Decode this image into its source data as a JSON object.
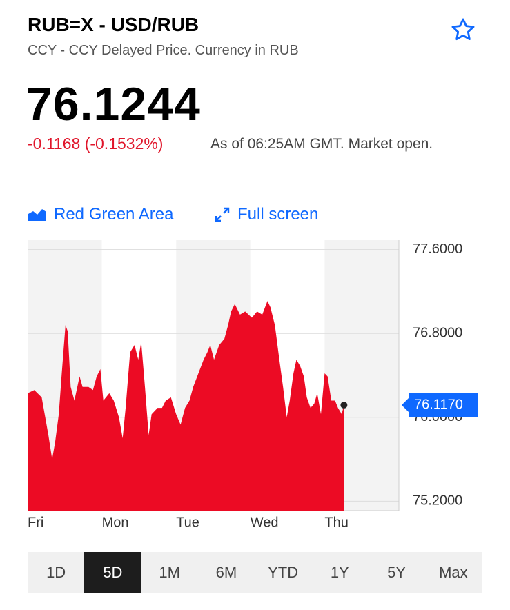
{
  "header": {
    "title": "RUB=X - USD/RUB",
    "subtitle": "CCY - CCY Delayed Price. Currency in RUB"
  },
  "quote": {
    "price": "76.1244",
    "change": "-0.1168 (-0.1532%)",
    "as_of": "As of 06:25AM GMT. Market open."
  },
  "controls": {
    "chart_type": "Red Green Area",
    "full_screen": "Full screen"
  },
  "chart_data": {
    "type": "area",
    "color": "#ec0b24",
    "x": [
      0,
      0.09,
      0.19,
      0.23,
      0.28,
      0.33,
      0.37,
      0.42,
      0.46,
      0.51,
      0.54,
      0.58,
      0.63,
      0.7,
      0.74,
      0.82,
      0.88,
      0.93,
      0.98,
      1.02,
      1.1,
      1.16,
      1.23,
      1.28,
      1.32,
      1.38,
      1.44,
      1.49,
      1.53,
      1.58,
      1.63,
      1.67,
      1.75,
      1.81,
      1.86,
      1.93,
      2.0,
      2.06,
      2.12,
      2.18,
      2.23,
      2.3,
      2.37,
      2.42,
      2.46,
      2.51,
      2.58,
      2.65,
      2.7,
      2.74,
      2.79,
      2.86,
      2.93,
      3.02,
      3.09,
      3.16,
      3.23,
      3.27,
      3.33,
      3.39,
      3.44,
      3.49,
      3.53,
      3.58,
      3.62,
      3.67,
      3.72,
      3.76,
      3.81,
      3.86,
      3.9,
      3.95,
      4.0,
      4.04,
      4.09,
      4.14,
      4.18,
      4.23,
      4.26
    ],
    "values": [
      76.23,
      76.26,
      76.19,
      76.03,
      75.83,
      75.6,
      75.76,
      76.03,
      76.42,
      76.88,
      76.82,
      76.29,
      76.16,
      76.39,
      76.29,
      76.29,
      76.26,
      76.39,
      76.46,
      76.16,
      76.23,
      76.16,
      76.0,
      75.8,
      76.09,
      76.62,
      76.69,
      76.55,
      76.72,
      76.29,
      75.83,
      76.03,
      76.09,
      76.09,
      76.16,
      76.19,
      76.03,
      75.93,
      76.09,
      76.16,
      76.29,
      76.42,
      76.55,
      76.62,
      76.69,
      76.55,
      76.69,
      76.75,
      76.88,
      77.01,
      77.08,
      76.98,
      77.01,
      76.95,
      77.01,
      76.98,
      77.11,
      77.05,
      76.88,
      76.55,
      76.29,
      76.0,
      76.16,
      76.42,
      76.55,
      76.49,
      76.39,
      76.19,
      76.09,
      76.13,
      76.23,
      76.03,
      76.42,
      76.39,
      76.16,
      76.16,
      76.09,
      76.03,
      76.117
    ],
    "xlim": [
      0,
      5
    ],
    "xticks": [
      {
        "value": 0,
        "label": "Fri"
      },
      {
        "value": 1,
        "label": "Mon"
      },
      {
        "value": 2,
        "label": "Tue"
      },
      {
        "value": 3,
        "label": "Wed"
      },
      {
        "value": 4,
        "label": "Thu"
      }
    ],
    "ylim": [
      75.11,
      77.69
    ],
    "yticks": [
      {
        "value": 77.6,
        "label": "77.6000"
      },
      {
        "value": 76.8,
        "label": "76.8000"
      },
      {
        "value": 76.0,
        "label": "76.0000"
      },
      {
        "value": 75.2,
        "label": "75.2000"
      }
    ],
    "grid": true,
    "last_price": {
      "value": 76.117,
      "label": "76.1170"
    }
  },
  "range_tabs": {
    "options": [
      "1D",
      "5D",
      "1M",
      "6M",
      "YTD",
      "1Y",
      "5Y",
      "Max"
    ],
    "selected": "5D"
  }
}
